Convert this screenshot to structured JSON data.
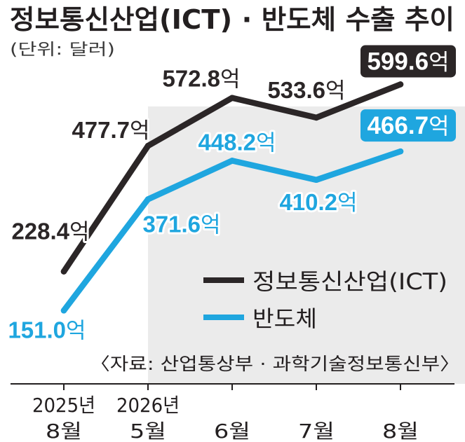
{
  "chart_data": {
    "type": "line",
    "title": "정보통신산업(ICT) · 반도체 수출 추이",
    "subtitle": "(단위: 달러)",
    "value_suffix": "억",
    "categories": [
      {
        "year": "2025년",
        "month": "8월"
      },
      {
        "year": "2026년",
        "month": "5월"
      },
      {
        "month": "6월"
      },
      {
        "month": "7월"
      },
      {
        "month": "8월"
      }
    ],
    "series": [
      {
        "name": "정보통신산업(ICT)",
        "color": "#2b2627",
        "values": [
          228.4,
          477.7,
          572.8,
          533.6,
          599.6
        ]
      },
      {
        "name": "반도체",
        "color": "#1fa6df",
        "values": [
          151.0,
          371.6,
          448.2,
          410.2,
          466.7
        ]
      }
    ],
    "ylim": [
      0,
      760
    ],
    "grid": false,
    "legend_position": "center-right",
    "source": "〈자료: 산업통상부 · 과학기술정보통신부〉"
  },
  "colors": {
    "text": "#231f20",
    "shade": "#ebebeb",
    "box_text": "#ffffff"
  }
}
